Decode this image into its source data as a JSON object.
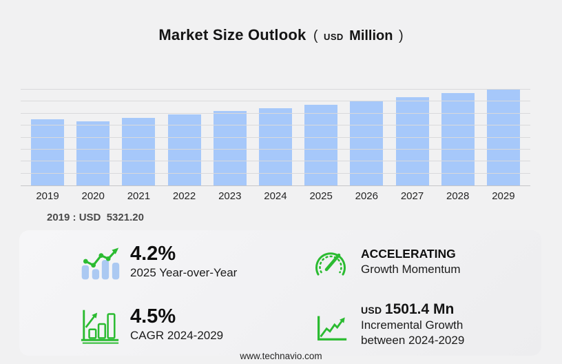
{
  "title": {
    "main": "Market Size Outlook",
    "open_paren": "(",
    "currency": "USD",
    "unit": "Million",
    "close_paren": ")"
  },
  "chart_data": {
    "type": "bar",
    "title": "Market Size Outlook (USD Million)",
    "categories": [
      "2019",
      "2020",
      "2021",
      "2022",
      "2023",
      "2024",
      "2025",
      "2026",
      "2027",
      "2028",
      "2029"
    ],
    "values": [
      5321.2,
      5155,
      5430,
      5700,
      5930,
      6200,
      6460,
      6710,
      7040,
      7370,
      7701.4
    ],
    "xlabel": "",
    "ylabel": "",
    "ylim": [
      0,
      8600
    ],
    "gridline_count": 8,
    "grid": true,
    "legend_position": "none",
    "bar_color": "#a6c8fa"
  },
  "base_year_note": {
    "text": "2019 : USD  5321.20"
  },
  "stats": {
    "yoy": {
      "value": "4.2%",
      "label": "2025 Year-over-Year",
      "icon": "trend-bars-icon"
    },
    "momentum": {
      "value": "ACCELERATING",
      "label": "Growth Momentum",
      "icon": "gauge-icon"
    },
    "cagr": {
      "value": "4.5%",
      "label": "CAGR 2024-2029",
      "icon": "growth-bars-arrow-icon"
    },
    "incremental": {
      "currency": "USD",
      "value": "1501.4 Mn",
      "label_line1": "Incremental Growth",
      "label_line2": "between 2024-2029",
      "icon": "zigzag-growth-icon"
    }
  },
  "footer": {
    "website": "www.technavio.com"
  },
  "colors": {
    "bar": "#a6c8fa",
    "green": "#2bbb31",
    "icon_bar_blue": "#abc9f2",
    "background": "#f1f1f2",
    "gridline": "#d9d9db"
  }
}
